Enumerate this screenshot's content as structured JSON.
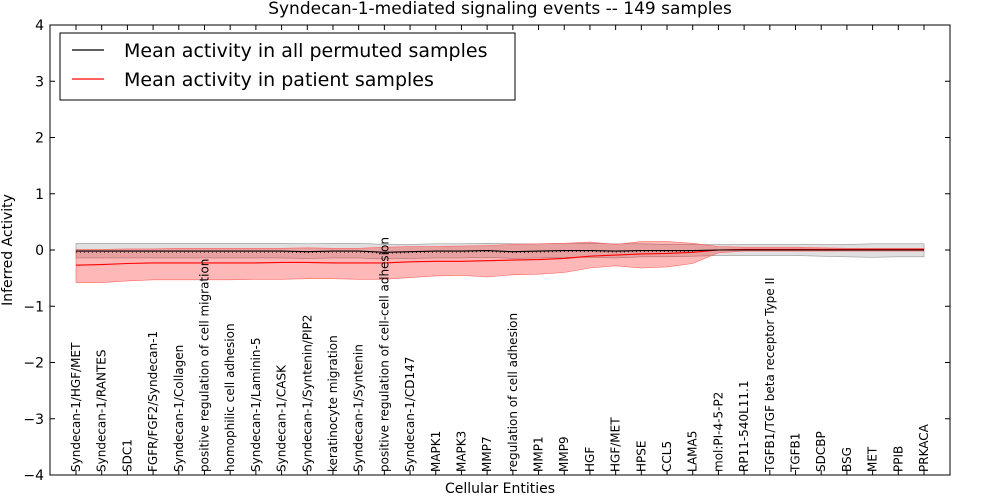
{
  "chart_data": {
    "type": "line",
    "title": "Syndecan-1-mediated signaling events -- 149 samples",
    "xlabel": "Cellular Entities",
    "ylabel": "Inferred Activity",
    "ylim": [
      -4,
      4
    ],
    "yticks": [
      -4,
      -3,
      -2,
      -1,
      0,
      1,
      2,
      3,
      4
    ],
    "grid": false,
    "legend_position": "top-left",
    "categories": [
      "Syndecan-1/HGF/MET",
      "Syndecan-1/RANTES",
      "SDC1",
      "FGFR/FGF2/Syndecan-1",
      "Syndecan-1/Collagen",
      "positive regulation of cell migration",
      "homophilic cell adhesion",
      "Syndecan-1/Laminin-5",
      "Syndecan-1/CASK",
      "Syndecan-1/Syntenin/PIP2",
      "keratinocyte migration",
      "Syndecan-1/Syntenin",
      "positive regulation of cell-cell adhesion",
      "Syndecan-1/CD147",
      "MAPK1",
      "MAPK3",
      "MMP7",
      "regulation of cell adhesion",
      "MMP1",
      "MMP9",
      "HGF",
      "HGF/MET",
      "HPSE",
      "CCL5",
      "LAMA5",
      "mol:PI-4-5-P2",
      "RP11-540L11.1",
      "TGFB1/TGF beta receptor Type II",
      "TGFB1",
      "SDCBP",
      "BSG",
      "MET",
      "PPIB",
      "PRKACA"
    ],
    "series": [
      {
        "name": "Mean activity in all permuted samples",
        "color": "#000000",
        "values": [
          -0.02,
          -0.02,
          -0.02,
          -0.02,
          -0.02,
          -0.02,
          -0.02,
          -0.02,
          -0.02,
          -0.03,
          -0.02,
          -0.02,
          -0.04,
          -0.03,
          -0.02,
          -0.02,
          -0.01,
          -0.03,
          -0.02,
          -0.01,
          -0.01,
          -0.02,
          -0.01,
          -0.01,
          -0.01,
          0.0,
          0.0,
          0.0,
          0.0,
          0.0,
          0.0,
          0.0,
          0.0,
          0.0
        ],
        "band_upper": [
          0.12,
          0.12,
          0.12,
          0.12,
          0.12,
          0.12,
          0.12,
          0.12,
          0.12,
          0.11,
          0.12,
          0.12,
          0.1,
          0.1,
          0.11,
          0.11,
          0.12,
          0.11,
          0.11,
          0.12,
          0.12,
          0.11,
          0.11,
          0.1,
          0.1,
          0.1,
          0.1,
          0.1,
          0.1,
          0.1,
          0.1,
          0.11,
          0.11,
          0.11
        ],
        "band_lower": [
          -0.14,
          -0.14,
          -0.14,
          -0.14,
          -0.14,
          -0.14,
          -0.14,
          -0.14,
          -0.14,
          -0.15,
          -0.14,
          -0.14,
          -0.16,
          -0.15,
          -0.14,
          -0.14,
          -0.13,
          -0.15,
          -0.14,
          -0.13,
          -0.13,
          -0.14,
          -0.12,
          -0.12,
          -0.11,
          -0.1,
          -0.1,
          -0.1,
          -0.1,
          -0.11,
          -0.12,
          -0.13,
          -0.12,
          -0.12
        ]
      },
      {
        "name": "Mean activity in patient samples",
        "color": "#ff0000",
        "values": [
          -0.27,
          -0.26,
          -0.24,
          -0.23,
          -0.23,
          -0.23,
          -0.23,
          -0.23,
          -0.22,
          -0.22,
          -0.23,
          -0.23,
          -0.23,
          -0.21,
          -0.2,
          -0.2,
          -0.19,
          -0.18,
          -0.17,
          -0.15,
          -0.11,
          -0.09,
          -0.07,
          -0.06,
          -0.04,
          0.0,
          0.01,
          0.01,
          0.01,
          0.01,
          0.01,
          0.01,
          0.01,
          0.01
        ],
        "band_upper": [
          0.01,
          0.01,
          0.02,
          0.02,
          0.03,
          0.03,
          0.03,
          0.03,
          0.03,
          0.04,
          0.03,
          0.03,
          0.05,
          0.06,
          0.06,
          0.07,
          0.08,
          0.1,
          0.11,
          0.12,
          0.14,
          0.1,
          0.15,
          0.15,
          0.12,
          0.06,
          0.05,
          0.05,
          0.05,
          0.04,
          0.03,
          0.03,
          0.03,
          0.03
        ],
        "band_lower": [
          -0.58,
          -0.58,
          -0.55,
          -0.53,
          -0.53,
          -0.53,
          -0.53,
          -0.52,
          -0.52,
          -0.51,
          -0.51,
          -0.52,
          -0.52,
          -0.49,
          -0.46,
          -0.45,
          -0.48,
          -0.44,
          -0.43,
          -0.4,
          -0.32,
          -0.28,
          -0.32,
          -0.3,
          -0.24,
          -0.05,
          -0.02,
          -0.02,
          -0.02,
          -0.02,
          -0.02,
          -0.02,
          -0.02,
          -0.02
        ]
      }
    ]
  }
}
